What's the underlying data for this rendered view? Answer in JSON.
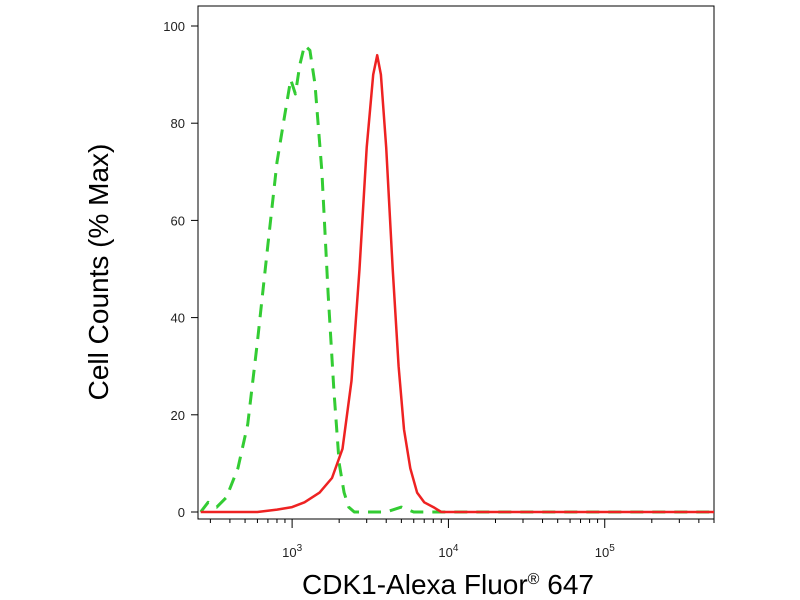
{
  "chart_data": {
    "type": "line",
    "xlabel": "CDK1-Alexa Fluor",
    "xlabel_mark": "®",
    "xlabel_suffix": " 647",
    "ylabel": "Cell Counts (% Max)",
    "x_scale": "log",
    "xlim": [
      250,
      500000
    ],
    "ylim": [
      0,
      105
    ],
    "y_ticks": [
      0,
      20,
      40,
      60,
      80,
      100
    ],
    "x_ticks": [
      {
        "value": 1000,
        "base": "10",
        "exp": "3"
      },
      {
        "value": 10000,
        "base": "10",
        "exp": "4"
      },
      {
        "value": 100000,
        "base": "10",
        "exp": "5"
      }
    ],
    "grid": false,
    "legend": "none",
    "series": [
      {
        "color": "#33cc33",
        "style": "dashed",
        "points": [
          [
            260,
            0
          ],
          [
            290,
            2
          ],
          [
            330,
            1
          ],
          [
            380,
            3
          ],
          [
            450,
            9
          ],
          [
            520,
            18
          ],
          [
            600,
            35
          ],
          [
            700,
            55
          ],
          [
            800,
            72
          ],
          [
            900,
            82
          ],
          [
            980,
            89
          ],
          [
            1050,
            86
          ],
          [
            1120,
            92
          ],
          [
            1200,
            96
          ],
          [
            1300,
            95
          ],
          [
            1400,
            88
          ],
          [
            1550,
            70
          ],
          [
            1700,
            45
          ],
          [
            1850,
            25
          ],
          [
            2000,
            10
          ],
          [
            2150,
            4
          ],
          [
            2300,
            1
          ],
          [
            2500,
            0
          ],
          [
            3000,
            0
          ],
          [
            4000,
            0
          ],
          [
            5000,
            1
          ],
          [
            6000,
            0
          ],
          [
            500000,
            0
          ]
        ]
      },
      {
        "color": "#ee2222",
        "style": "solid",
        "points": [
          [
            260,
            0
          ],
          [
            400,
            0
          ],
          [
            600,
            0
          ],
          [
            800,
            0.5
          ],
          [
            1000,
            1
          ],
          [
            1200,
            2
          ],
          [
            1500,
            4
          ],
          [
            1800,
            7
          ],
          [
            2100,
            13
          ],
          [
            2400,
            27
          ],
          [
            2700,
            50
          ],
          [
            3000,
            75
          ],
          [
            3300,
            90
          ],
          [
            3500,
            94
          ],
          [
            3700,
            90
          ],
          [
            4000,
            75
          ],
          [
            4400,
            50
          ],
          [
            4800,
            30
          ],
          [
            5200,
            17
          ],
          [
            5700,
            9
          ],
          [
            6300,
            4
          ],
          [
            7000,
            2
          ],
          [
            8000,
            1
          ],
          [
            9000,
            0
          ],
          [
            10000,
            0
          ],
          [
            500000,
            0
          ]
        ]
      }
    ]
  }
}
